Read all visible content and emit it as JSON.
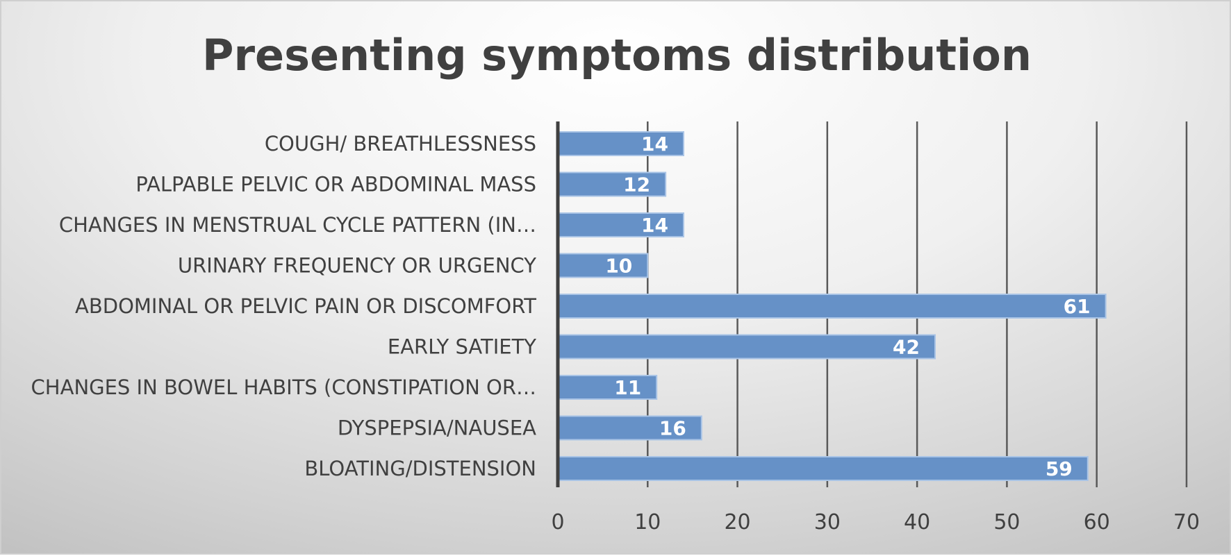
{
  "chart_data": {
    "type": "bar",
    "orientation": "horizontal",
    "title": "Presenting symptoms distribution",
    "xlabel": "",
    "ylabel": "",
    "categories": [
      "COUGH/ BREATHLESSNESS",
      "PALPABLE PELVIC OR ABDOMINAL MASS",
      "CHANGES IN MENSTRUAL CYCLE PATTERN (IN…",
      "URINARY FREQUENCY OR URGENCY",
      "ABDOMINAL OR PELVIC PAIN OR DISCOMFORT",
      "EARLY SATIETY",
      "CHANGES IN BOWEL HABITS (CONSTIPATION OR…",
      "DYSPEPSIA/NAUSEA",
      "BLOATING/DISTENSION"
    ],
    "values": [
      14,
      12,
      14,
      10,
      61,
      42,
      11,
      16,
      59
    ],
    "xlim": [
      0,
      70
    ],
    "xticks": [
      0,
      10,
      20,
      30,
      40,
      50,
      60,
      70
    ],
    "grid": true,
    "legend": "none",
    "bar_color": "#4f81bd",
    "bar_fill": "#6691c7",
    "bar_border": "#a9c4e6",
    "axis_color": "#404040",
    "grid_color": "#595959"
  }
}
